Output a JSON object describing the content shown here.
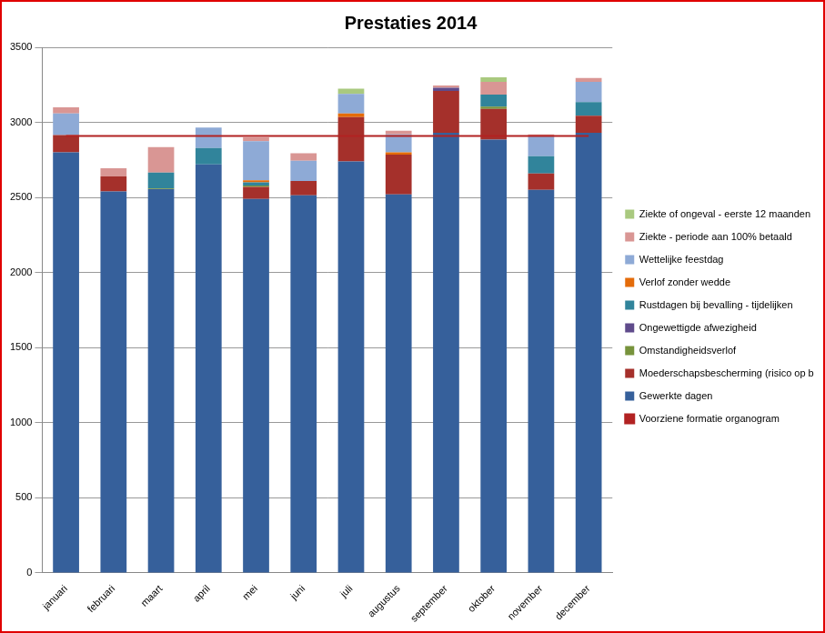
{
  "chart_data": {
    "type": "bar",
    "title": "Prestaties 2014",
    "categories": [
      "januari",
      "februari",
      "maart",
      "april",
      "mei",
      "juni",
      "juli",
      "augustus",
      "september",
      "oktober",
      "november",
      "december"
    ],
    "stacked": true,
    "grid": true,
    "legend": "right",
    "ylim": [
      0,
      3500
    ],
    "yticks": [
      0,
      500,
      1000,
      1500,
      2000,
      2500,
      3000,
      3500
    ],
    "series": [
      {
        "name": "Gewerkte dagen",
        "color": "#36609b",
        "values": [
          2800,
          2540,
          2555,
          2720,
          2490,
          2515,
          2740,
          2520,
          2930,
          2885,
          2550,
          2930
        ]
      },
      {
        "name": "Moederschapsbescherming (risico op beroepsziekte en andere)",
        "color": "#a5302b",
        "values": [
          115,
          100,
          0,
          0,
          80,
          95,
          295,
          265,
          280,
          205,
          110,
          115
        ]
      },
      {
        "name": "Omstandigheidsverlof",
        "color": "#77933c",
        "values": [
          0,
          0,
          5,
          0,
          10,
          0,
          0,
          0,
          0,
          15,
          0,
          0
        ]
      },
      {
        "name": "Ongewettigde afwezigheid",
        "color": "#5f4b8b",
        "values": [
          0,
          0,
          0,
          0,
          0,
          0,
          0,
          0,
          20,
          0,
          0,
          0
        ]
      },
      {
        "name": "Rustdagen bij bevalling - tijdelijken",
        "color": "#31849b",
        "values": [
          0,
          0,
          105,
          110,
          20,
          0,
          0,
          0,
          0,
          80,
          115,
          90
        ]
      },
      {
        "name": "Verlof zonder wedde",
        "color": "#e46c0a",
        "values": [
          0,
          0,
          0,
          0,
          15,
          0,
          25,
          15,
          0,
          0,
          0,
          0
        ]
      },
      {
        "name": "Wettelijke feestdag",
        "color": "#8eaad6",
        "values": [
          145,
          0,
          0,
          135,
          260,
          135,
          130,
          120,
          0,
          0,
          135,
          135
        ]
      },
      {
        "name": "Ziekte - periode aan 100% betaald",
        "color": "#d99694",
        "values": [
          40,
          55,
          170,
          0,
          25,
          50,
          0,
          25,
          15,
          85,
          10,
          25
        ]
      },
      {
        "name": "Ziekte of ongeval - eerste 12 maanden",
        "color": "#a9c97f",
        "values": [
          0,
          0,
          0,
          0,
          0,
          0,
          35,
          0,
          0,
          30,
          0,
          0
        ]
      },
      {
        "name": "Voorziene formatie organogram",
        "color": "#b22222",
        "type": "line",
        "values": [
          2910,
          2910,
          2910,
          2910,
          2910,
          2910,
          2910,
          2910,
          2910,
          2910,
          2910,
          2910
        ]
      }
    ]
  }
}
